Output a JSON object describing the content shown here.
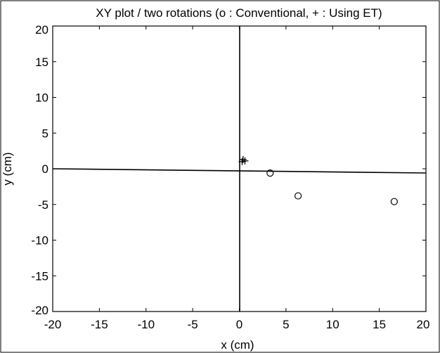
{
  "chart_data": {
    "type": "scatter",
    "title": "XY plot / two rotations (o : Conventional,  + : Using ET)",
    "xlabel": "x (cm)",
    "ylabel": "y (cm)",
    "xlim": [
      -20,
      20
    ],
    "ylim": [
      -20,
      20
    ],
    "xticks": [
      "-20",
      "-15",
      "-10",
      "-5",
      "0",
      "5",
      "10",
      "15",
      "20"
    ],
    "yticks": [
      "20",
      "15",
      "10",
      "5",
      "0",
      "-5",
      "-10",
      "-15",
      "-20"
    ],
    "grid": false,
    "legend": "none",
    "series": [
      {
        "marker": "o",
        "points": [
          {
            "x": 3.3,
            "y": -0.6
          },
          {
            "x": 6.3,
            "y": -3.8
          },
          {
            "x": 16.6,
            "y": -4.6
          }
        ]
      },
      {
        "marker": "+",
        "points": [
          {
            "x": 0.4,
            "y": 1.3
          },
          {
            "x": 0.6,
            "y": 1.1
          },
          {
            "x": 0.3,
            "y": 1.0
          }
        ]
      }
    ]
  }
}
